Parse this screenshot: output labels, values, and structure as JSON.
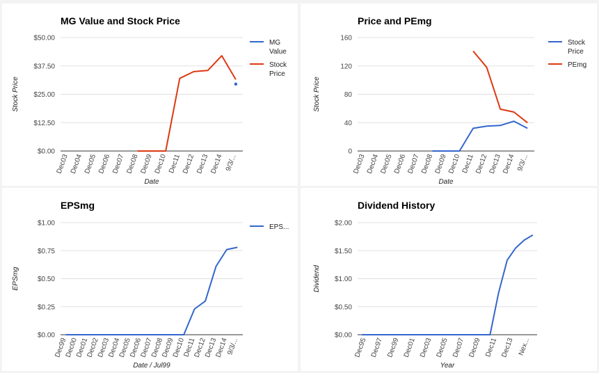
{
  "colors": {
    "blue": "#3366cc",
    "red": "#dc3912",
    "grid": "#e0e0e0",
    "axis": "#333333",
    "border": "#999999"
  },
  "chart_data": [
    {
      "type": "line",
      "title": "MG Value and Stock Price",
      "xlabel": "Date",
      "ylabel": "Stock Price",
      "categories": [
        "Dec03",
        "Dec04",
        "Dec05",
        "Dec06",
        "Dec07",
        "Dec08",
        "Dec09",
        "Dec10",
        "Dec11",
        "Dec12",
        "Dec13",
        "Dec14",
        "9/3/..."
      ],
      "yticks": [
        "$0.00",
        "$12.50",
        "$25.00",
        "$37.50",
        "$50.00"
      ],
      "ylim": [
        0,
        50
      ],
      "grid": true,
      "legend": "right",
      "series": [
        {
          "name": "MG Value",
          "color": "#3366cc",
          "values": [
            null,
            null,
            null,
            null,
            null,
            null,
            null,
            null,
            null,
            null,
            null,
            null,
            29.5
          ]
        },
        {
          "name": "Stock Price",
          "color": "#dc3912",
          "values": [
            null,
            null,
            null,
            null,
            null,
            0,
            0,
            0,
            32,
            35,
            35.5,
            42,
            31.5
          ]
        }
      ]
    },
    {
      "type": "line",
      "title": "Price and PEmg",
      "xlabel": "Date",
      "ylabel": "Stock Price",
      "categories": [
        "Dec03",
        "Dec04",
        "Dec05",
        "Dec06",
        "Dec07",
        "Dec08",
        "Dec09",
        "Dec10",
        "Dec11",
        "Dec12",
        "Dec13",
        "Dec14",
        "9/3/..."
      ],
      "yticks": [
        "0",
        "40",
        "80",
        "120",
        "160"
      ],
      "ylim": [
        0,
        160
      ],
      "grid": true,
      "legend": "right",
      "series": [
        {
          "name": "Stock Price",
          "color": "#3366cc",
          "values": [
            null,
            null,
            null,
            null,
            null,
            0,
            0,
            0,
            32,
            35,
            36,
            42,
            32
          ]
        },
        {
          "name": "PEmg",
          "color": "#dc3912",
          "values": [
            null,
            null,
            null,
            null,
            null,
            null,
            null,
            null,
            141,
            118,
            59,
            55,
            40
          ]
        }
      ]
    },
    {
      "type": "line",
      "title": "EPSmg",
      "xlabel": "Date / Jul99",
      "ylabel": "EPSmg",
      "categories": [
        "Dec99",
        "Dec00",
        "Dec01",
        "Dec02",
        "Dec03",
        "Dec04",
        "Dec05",
        "Dec06",
        "Dec07",
        "Dec08",
        "Dec09",
        "Dec10",
        "Dec11",
        "Dec12",
        "Dec13",
        "Dec14",
        "9/3/..."
      ],
      "yticks": [
        "$0.00",
        "$0.25",
        "$0.50",
        "$0.75",
        "$1.00"
      ],
      "ylim": [
        0,
        1
      ],
      "grid": true,
      "legend": "right",
      "series": [
        {
          "name": "EPS...",
          "color": "#3366cc",
          "values": [
            0,
            0,
            0,
            0,
            0,
            0,
            0,
            0,
            0,
            0,
            0,
            0,
            0.23,
            0.3,
            0.61,
            0.76,
            0.78
          ]
        }
      ]
    },
    {
      "type": "line",
      "title": "Dividend History",
      "xlabel": "Year",
      "ylabel": "Dividend",
      "categories": [
        "Dec95",
        "Dec97",
        "Dec99",
        "Dec01",
        "Dec03",
        "Dec05",
        "Dec07",
        "Dec09",
        "Dec11",
        "Dec13",
        "Nex..."
      ],
      "yticks": [
        "$0.00",
        "$0.50",
        "$1.00",
        "$1.50",
        "$2.00"
      ],
      "ylim": [
        0,
        2
      ],
      "grid": true,
      "legend": "none",
      "x": [
        0,
        1,
        2,
        3,
        4,
        5,
        6,
        7,
        8,
        9,
        10,
        11,
        12,
        13,
        14,
        15,
        16,
        17,
        18,
        19,
        20
      ],
      "series": [
        {
          "name": "Dividend",
          "color": "#3366cc",
          "values": [
            0,
            0,
            0,
            0,
            0,
            0,
            0,
            0,
            0,
            0,
            0,
            0,
            0,
            0,
            0,
            0,
            0.75,
            1.33,
            1.55,
            1.69,
            1.78
          ]
        }
      ]
    }
  ]
}
